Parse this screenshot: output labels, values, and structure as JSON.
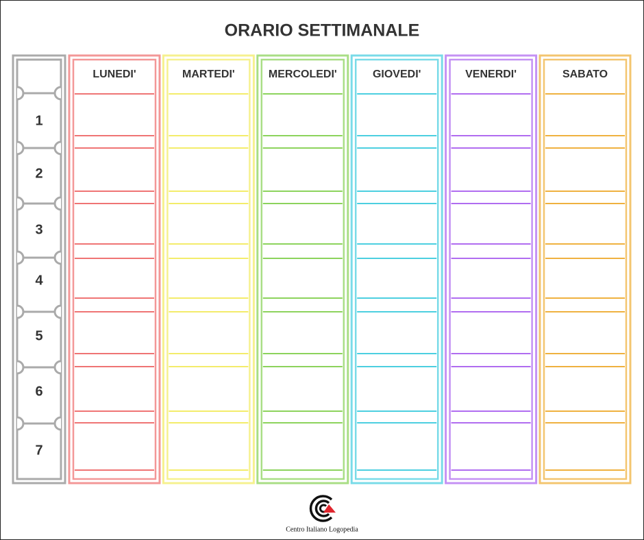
{
  "title": "ORARIO SETTIMANALE",
  "periods": [
    "1",
    "2",
    "3",
    "4",
    "5",
    "6",
    "7"
  ],
  "days": [
    {
      "name": "LUNEDI'",
      "color": "#ef7474"
    },
    {
      "name": "MARTEDI'",
      "color": "#f3ec6a"
    },
    {
      "name": "MERCOLEDI'",
      "color": "#8cd35c"
    },
    {
      "name": "GIOVEDI'",
      "color": "#4ccfe0"
    },
    {
      "name": "VENERDI'",
      "color": "#b06cf0"
    },
    {
      "name": "SABATO",
      "color": "#efb13f"
    }
  ],
  "footer": {
    "logo_text": "Centro Italiano Logopedia"
  }
}
